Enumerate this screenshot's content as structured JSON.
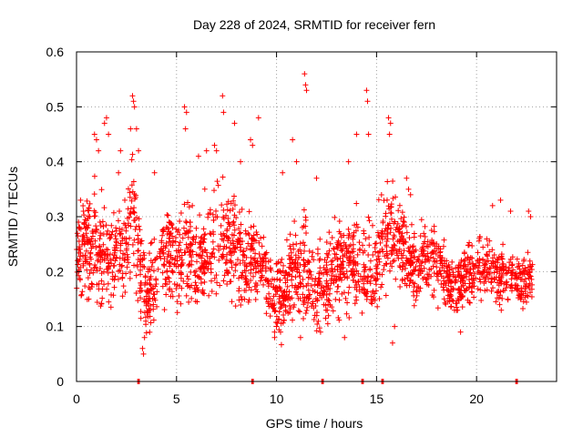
{
  "chart_data": {
    "type": "scatter",
    "title": "Day 228 of 2024, SRMTID for receiver fern",
    "xlabel": "GPS time / hours",
    "ylabel": "SRMTID / TECUs",
    "xlim": [
      0,
      24
    ],
    "ylim": [
      0,
      0.6
    ],
    "xticks": [
      0,
      5,
      10,
      15,
      20
    ],
    "yticks": [
      0,
      0.1,
      0.2,
      0.3,
      0.4,
      0.5,
      0.6
    ],
    "grid": true,
    "marker": "+",
    "color": "#ff0000",
    "series_name": "SRMTID",
    "x_range_data": [
      0,
      22.8
    ],
    "zero_value_times": [
      3.1,
      8.8,
      12.3,
      14.3,
      15.3,
      22.0
    ],
    "envelope": {
      "x": [
        0.0,
        0.5,
        1.0,
        1.5,
        2.0,
        2.5,
        2.8,
        3.0,
        3.2,
        3.5,
        4.0,
        4.5,
        5.0,
        5.5,
        6.0,
        6.5,
        7.0,
        7.3,
        7.5,
        8.0,
        8.5,
        8.8,
        9.0,
        9.5,
        10.0,
        10.5,
        11.0,
        11.5,
        12.0,
        12.5,
        13.0,
        13.5,
        14.0,
        14.5,
        15.0,
        15.5,
        15.8,
        16.0,
        16.5,
        17.0,
        17.5,
        18.0,
        18.5,
        19.0,
        19.5,
        20.0,
        20.5,
        21.0,
        21.5,
        22.0,
        22.5,
        22.8
      ],
      "center": [
        0.22,
        0.24,
        0.25,
        0.23,
        0.22,
        0.25,
        0.3,
        0.28,
        0.2,
        0.15,
        0.2,
        0.22,
        0.23,
        0.24,
        0.21,
        0.24,
        0.27,
        0.26,
        0.25,
        0.24,
        0.21,
        0.23,
        0.22,
        0.19,
        0.15,
        0.17,
        0.21,
        0.2,
        0.17,
        0.18,
        0.22,
        0.21,
        0.23,
        0.2,
        0.21,
        0.27,
        0.26,
        0.25,
        0.23,
        0.21,
        0.22,
        0.21,
        0.18,
        0.17,
        0.19,
        0.22,
        0.2,
        0.19,
        0.19,
        0.18,
        0.18,
        0.2
      ],
      "spread": [
        0.07,
        0.1,
        0.11,
        0.1,
        0.09,
        0.11,
        0.12,
        0.11,
        0.1,
        0.08,
        0.09,
        0.09,
        0.1,
        0.11,
        0.09,
        0.1,
        0.11,
        0.1,
        0.1,
        0.1,
        0.09,
        0.09,
        0.08,
        0.08,
        0.07,
        0.09,
        0.1,
        0.1,
        0.08,
        0.08,
        0.09,
        0.09,
        0.09,
        0.09,
        0.09,
        0.1,
        0.1,
        0.09,
        0.08,
        0.07,
        0.07,
        0.07,
        0.06,
        0.06,
        0.06,
        0.07,
        0.06,
        0.06,
        0.06,
        0.05,
        0.05,
        0.05
      ]
    },
    "highlights": [
      [
        0.1,
        0.29
      ],
      [
        0.2,
        0.33
      ],
      [
        0.9,
        0.45
      ],
      [
        1.0,
        0.44
      ],
      [
        1.1,
        0.42
      ],
      [
        1.4,
        0.47
      ],
      [
        1.5,
        0.48
      ],
      [
        1.6,
        0.45
      ],
      [
        2.1,
        0.38
      ],
      [
        2.2,
        0.42
      ],
      [
        2.7,
        0.46
      ],
      [
        2.8,
        0.52
      ],
      [
        2.85,
        0.51
      ],
      [
        2.9,
        0.5
      ],
      [
        3.0,
        0.46
      ],
      [
        3.1,
        0.42
      ],
      [
        3.3,
        0.06
      ],
      [
        3.35,
        0.05
      ],
      [
        3.4,
        0.08
      ],
      [
        3.9,
        0.38
      ],
      [
        5.4,
        0.5
      ],
      [
        5.5,
        0.49
      ],
      [
        5.45,
        0.46
      ],
      [
        6.1,
        0.41
      ],
      [
        6.5,
        0.42
      ],
      [
        6.9,
        0.43
      ],
      [
        7.0,
        0.42
      ],
      [
        7.3,
        0.52
      ],
      [
        7.35,
        0.49
      ],
      [
        7.9,
        0.47
      ],
      [
        8.2,
        0.4
      ],
      [
        8.7,
        0.44
      ],
      [
        8.8,
        0.43
      ],
      [
        9.1,
        0.48
      ],
      [
        10.3,
        0.38
      ],
      [
        10.8,
        0.44
      ],
      [
        11.0,
        0.4
      ],
      [
        11.4,
        0.56
      ],
      [
        11.45,
        0.54
      ],
      [
        11.5,
        0.53
      ],
      [
        12.0,
        0.37
      ],
      [
        13.4,
        0.08
      ],
      [
        13.6,
        0.4
      ],
      [
        14.0,
        0.45
      ],
      [
        14.5,
        0.53
      ],
      [
        14.55,
        0.51
      ],
      [
        14.6,
        0.45
      ],
      [
        15.6,
        0.48
      ],
      [
        15.7,
        0.47
      ],
      [
        15.65,
        0.45
      ],
      [
        15.8,
        0.07
      ],
      [
        15.9,
        0.1
      ],
      [
        16.5,
        0.37
      ],
      [
        16.6,
        0.35
      ],
      [
        16.7,
        0.34
      ],
      [
        9.9,
        0.09
      ],
      [
        10.2,
        0.09
      ],
      [
        11.2,
        0.08
      ],
      [
        12.2,
        0.09
      ],
      [
        19.2,
        0.09
      ],
      [
        20.8,
        0.32
      ],
      [
        21.2,
        0.33
      ],
      [
        21.7,
        0.31
      ],
      [
        22.6,
        0.31
      ],
      [
        22.7,
        0.3
      ]
    ]
  }
}
